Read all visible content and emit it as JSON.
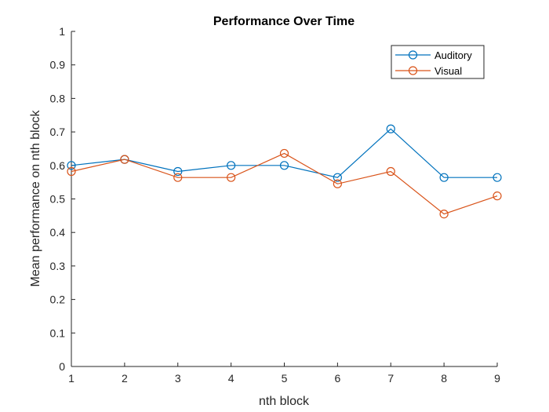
{
  "chart_data": {
    "type": "line",
    "title": "Performance Over Time",
    "xlabel": "nth block",
    "ylabel": "Mean performance on nth block",
    "x": [
      1,
      2,
      3,
      4,
      5,
      6,
      7,
      8,
      9
    ],
    "xlim": [
      1,
      9
    ],
    "ylim": [
      0,
      1
    ],
    "xticks": [
      "1",
      "2",
      "3",
      "4",
      "5",
      "6",
      "7",
      "8",
      "9"
    ],
    "yticks": [
      "0",
      "0.1",
      "0.2",
      "0.3",
      "0.4",
      "0.5",
      "0.6",
      "0.7",
      "0.8",
      "0.9",
      "1"
    ],
    "grid": false,
    "legend_position": "top-right",
    "marker": "circle",
    "series": [
      {
        "name": "Auditory",
        "color": "#0072BD",
        "values": [
          0.6,
          0.618,
          0.582,
          0.6,
          0.6,
          0.564,
          0.709,
          0.564,
          0.564
        ]
      },
      {
        "name": "Visual",
        "color": "#D95319",
        "values": [
          0.582,
          0.618,
          0.564,
          0.564,
          0.636,
          0.545,
          0.582,
          0.455,
          0.509
        ]
      }
    ]
  }
}
